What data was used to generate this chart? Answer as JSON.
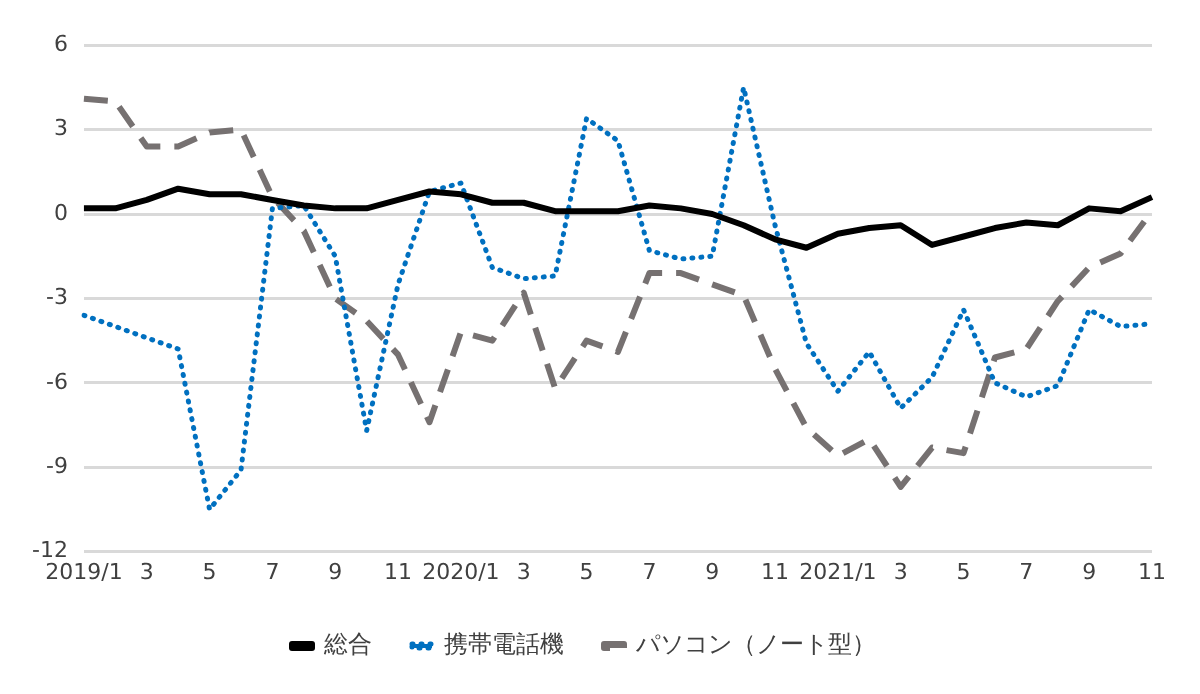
{
  "chart_data": {
    "type": "line",
    "categories": [
      "2019/1",
      null,
      "3",
      null,
      "5",
      null,
      "7",
      null,
      "9",
      null,
      "11",
      null,
      "2020/1",
      null,
      "3",
      null,
      "5",
      null,
      "7",
      null,
      "9",
      null,
      "11",
      null,
      "2021/1",
      null,
      "3",
      null,
      "5",
      null,
      "7",
      null,
      "9",
      null,
      "11"
    ],
    "series": [
      {
        "name": "総合",
        "color": "#000000",
        "line_style": "solid",
        "values": [
          0.2,
          0.2,
          0.5,
          0.9,
          0.7,
          0.7,
          0.5,
          0.3,
          0.2,
          0.2,
          0.5,
          0.8,
          0.7,
          0.4,
          0.4,
          0.1,
          0.1,
          0.1,
          0.3,
          0.2,
          0,
          -0.4,
          -0.9,
          -1.2,
          -0.7,
          -0.5,
          -0.4,
          -1.1,
          -0.8,
          -0.5,
          -0.3,
          -0.4,
          0.2,
          0.1,
          0.6
        ]
      },
      {
        "name": "携帯電話機",
        "color": "#0070c0",
        "line_style": "dotted",
        "values": [
          -3.6,
          -4.0,
          -4.4,
          -4.8,
          -10.5,
          -9.1,
          0.2,
          0.3,
          -1.5,
          -7.7,
          -2.5,
          0.8,
          1.1,
          -1.9,
          -2.3,
          -2.2,
          3.4,
          2.6,
          -1.3,
          -1.6,
          -1.5,
          4.5,
          -0.4,
          -4.6,
          -6.3,
          -4.9,
          -6.9,
          -5.8,
          -3.4,
          -6.0,
          -6.5,
          -6.1,
          -3.4,
          -4.0,
          -3.9
        ]
      },
      {
        "name": "パソコン（ノート型）",
        "color": "#767171",
        "line_style": "dashed",
        "values": [
          4.1,
          4.0,
          2.4,
          2.4,
          2.9,
          3.0,
          0.6,
          -0.6,
          -3.0,
          -3.8,
          -5.0,
          -7.4,
          -4.2,
          -4.5,
          -2.8,
          -6.2,
          -4.5,
          -4.9,
          -2.1,
          -2.1,
          -2.5,
          -2.9,
          -5.5,
          -7.6,
          -8.6,
          -8.0,
          -9.7,
          -8.3,
          -8.5,
          -5.1,
          -4.8,
          -3.1,
          -1.9,
          -1.4,
          0.1
        ]
      }
    ],
    "ylim": [
      -12,
      6
    ],
    "yticks": [
      -12,
      -9,
      -6,
      -3,
      0,
      3,
      6
    ],
    "grid": "y",
    "legend": "bottom",
    "marker": "none"
  }
}
